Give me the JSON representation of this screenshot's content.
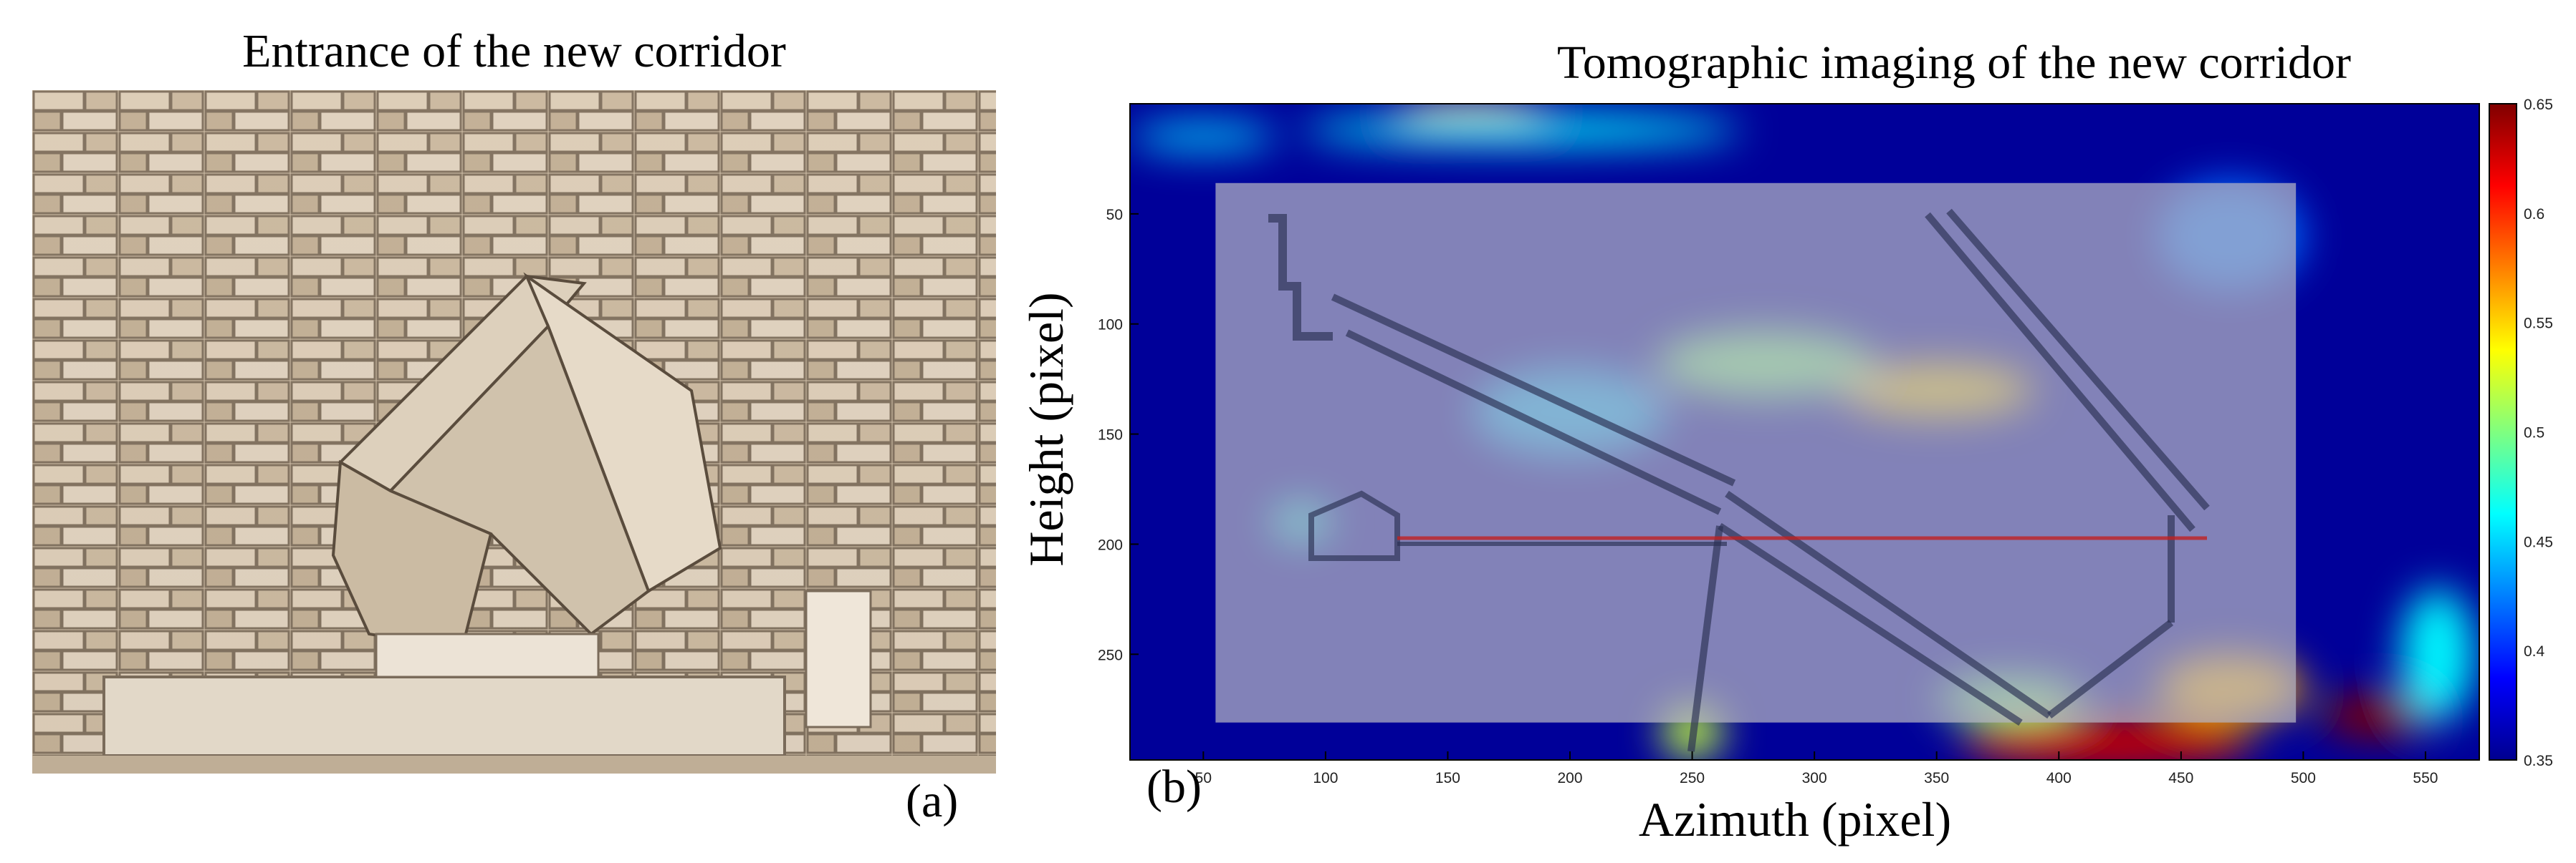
{
  "panels": {
    "left": {
      "title": "Entrance of the new corridor",
      "label": "(a)"
    },
    "right": {
      "title": "Tomographic imaging of the new corridor",
      "label": "(b)"
    }
  },
  "chart_data": {
    "type": "heatmap",
    "title": "Tomographic imaging of the new corridor",
    "xlabel": "Azimuth (pixel)",
    "ylabel": "Height (pixel)",
    "xlim": [
      20,
      572
    ],
    "ylim": [
      0,
      298
    ],
    "xticks": [
      50,
      100,
      150,
      200,
      250,
      300,
      350,
      400,
      450,
      500,
      550
    ],
    "yticks": [
      50,
      100,
      150,
      200,
      250
    ],
    "colorbar": {
      "range": [
        0.35,
        0.65
      ],
      "ticks": [
        0.35,
        0.4,
        0.45,
        0.5,
        0.55,
        0.6,
        0.65
      ],
      "colormap": "jet"
    },
    "overlay_region": {
      "x": [
        55,
        497
      ],
      "y": [
        36,
        281
      ]
    },
    "hotspots": [
      {
        "x": 420,
        "y": 290,
        "w": 120,
        "h": 25,
        "value": 0.63
      },
      {
        "x": 530,
        "y": 278,
        "w": 45,
        "h": 20,
        "value": 0.65
      },
      {
        "x": 350,
        "y": 130,
        "w": 80,
        "h": 25,
        "value": 0.55
      },
      {
        "x": 280,
        "y": 118,
        "w": 90,
        "h": 30,
        "value": 0.5
      },
      {
        "x": 160,
        "y": 5,
        "w": 60,
        "h": 12,
        "value": 0.55
      },
      {
        "x": 50,
        "y": 15,
        "w": 60,
        "h": 12,
        "value": 0.45
      },
      {
        "x": 180,
        "y": 12,
        "w": 180,
        "h": 14,
        "value": 0.46
      },
      {
        "x": 90,
        "y": 190,
        "w": 25,
        "h": 18,
        "value": 0.47
      },
      {
        "x": 250,
        "y": 285,
        "w": 25,
        "h": 25,
        "value": 0.52
      },
      {
        "x": 380,
        "y": 270,
        "w": 60,
        "h": 20,
        "value": 0.5
      },
      {
        "x": 470,
        "y": 265,
        "w": 60,
        "h": 30,
        "value": 0.56
      },
      {
        "x": 555,
        "y": 250,
        "w": 30,
        "h": 60,
        "value": 0.46
      },
      {
        "x": 470,
        "y": 60,
        "w": 60,
        "h": 50,
        "value": 0.42
      },
      {
        "x": 200,
        "y": 140,
        "w": 80,
        "h": 40,
        "value": 0.44
      }
    ]
  },
  "colors": {
    "jet_background": "#000099",
    "overlay_gray": "#b4b4c3",
    "schematic_stroke": "#2a2f52"
  }
}
